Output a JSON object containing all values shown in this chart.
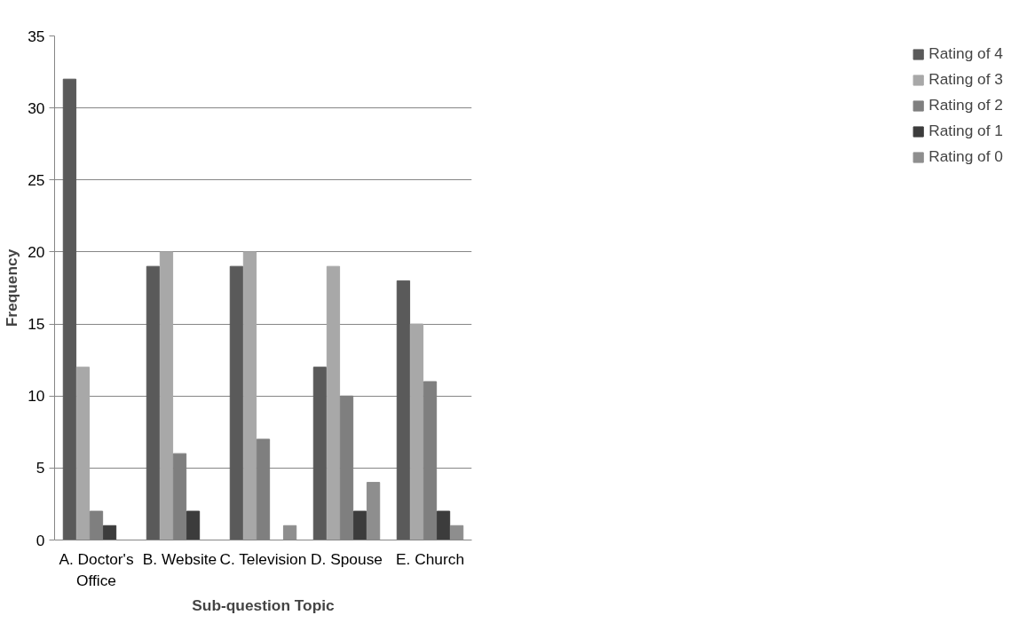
{
  "chart_data": {
    "type": "bar",
    "xlabel": "Sub-question Topic",
    "ylabel": "Frequency",
    "categories": [
      "A. Doctor's Office",
      "B. Website",
      "C. Television",
      "D. Spouse",
      "E. Church"
    ],
    "series": [
      {
        "name": "Rating of 4",
        "color": "#5a5a5a",
        "values": [
          32,
          19,
          19,
          12,
          18
        ]
      },
      {
        "name": "Rating of 3",
        "color": "#a8a8a8",
        "values": [
          12,
          20,
          20,
          19,
          15
        ]
      },
      {
        "name": "Rating of 2",
        "color": "#7f7f7f",
        "values": [
          2,
          6,
          7,
          10,
          11
        ]
      },
      {
        "name": "Rating of 1",
        "color": "#3c3c3c",
        "values": [
          1,
          2,
          0,
          2,
          2
        ]
      },
      {
        "name": "Rating of 0",
        "color": "#8e8e8e",
        "values": [
          0,
          0,
          1,
          4,
          1
        ]
      }
    ],
    "ylim": [
      0,
      35
    ],
    "yticks": [
      0,
      5,
      10,
      15,
      20,
      25,
      30,
      35
    ],
    "grid": "y",
    "legend": "right"
  }
}
